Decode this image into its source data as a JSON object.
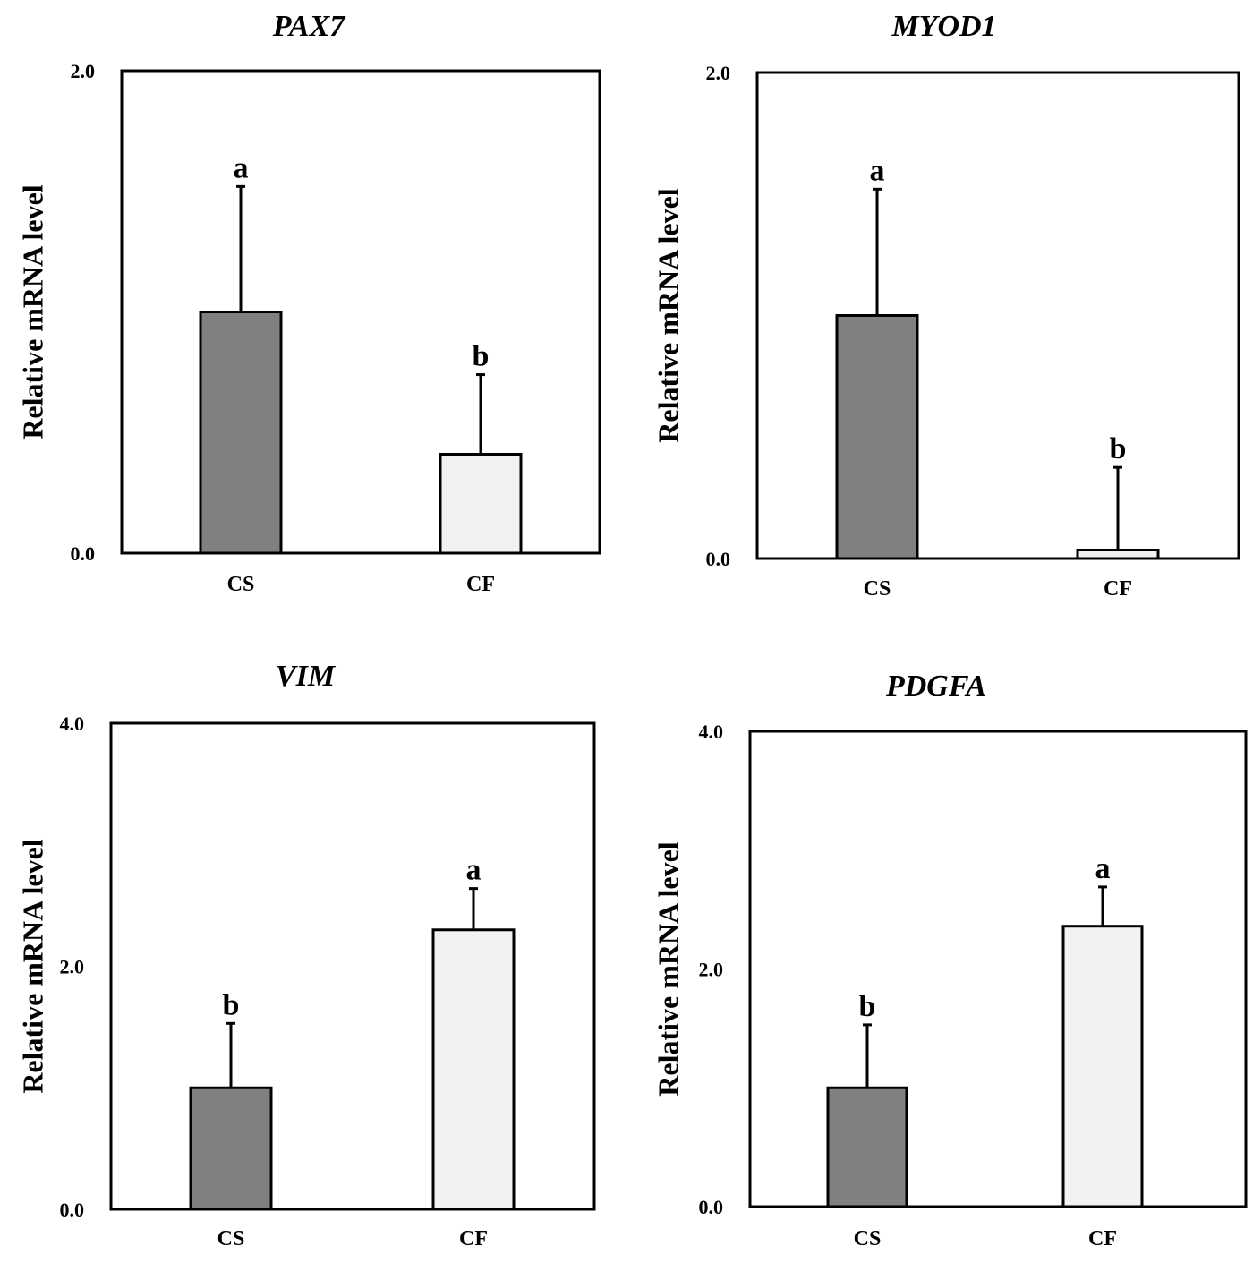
{
  "colors": {
    "cs_fill": "#808080",
    "cf_fill": "#f2f2f2",
    "stroke": "#000000"
  },
  "chart_data": [
    {
      "type": "bar",
      "title": "PAX7",
      "ylabel": "Relative mRNA level",
      "categories": [
        "CS",
        "CF"
      ],
      "values": [
        1.0,
        0.41
      ],
      "errors": [
        0.52,
        0.33
      ],
      "significance": [
        "a",
        "b"
      ],
      "ylim": [
        0.0,
        2.0
      ],
      "yticks": [
        "0.0",
        "2.0"
      ],
      "grid": false
    },
    {
      "type": "bar",
      "title": "MYOD1",
      "ylabel": "Relative mRNA level",
      "categories": [
        "CS",
        "CF"
      ],
      "values": [
        1.0,
        0.035
      ],
      "errors": [
        0.52,
        0.34
      ],
      "significance": [
        "a",
        "b"
      ],
      "ylim": [
        0.0,
        2.0
      ],
      "yticks": [
        "0.0",
        "2.0"
      ],
      "grid": false
    },
    {
      "type": "bar",
      "title": "VIM",
      "ylabel": "Relative mRNA level",
      "categories": [
        "CS",
        "CF"
      ],
      "values": [
        1.0,
        2.3
      ],
      "errors": [
        0.53,
        0.34
      ],
      "significance": [
        "b",
        "a"
      ],
      "ylim": [
        0.0,
        4.0
      ],
      "yticks": [
        "0.0",
        "2.0",
        "4.0"
      ],
      "grid": false
    },
    {
      "type": "bar",
      "title": "PDGFA",
      "ylabel": "Relative mRNA level",
      "categories": [
        "CS",
        "CF"
      ],
      "values": [
        1.0,
        2.36
      ],
      "errors": [
        0.53,
        0.33
      ],
      "significance": [
        "b",
        "a"
      ],
      "ylim": [
        0.0,
        4.0
      ],
      "yticks": [
        "0.0",
        "2.0",
        "4.0"
      ],
      "grid": false
    }
  ]
}
